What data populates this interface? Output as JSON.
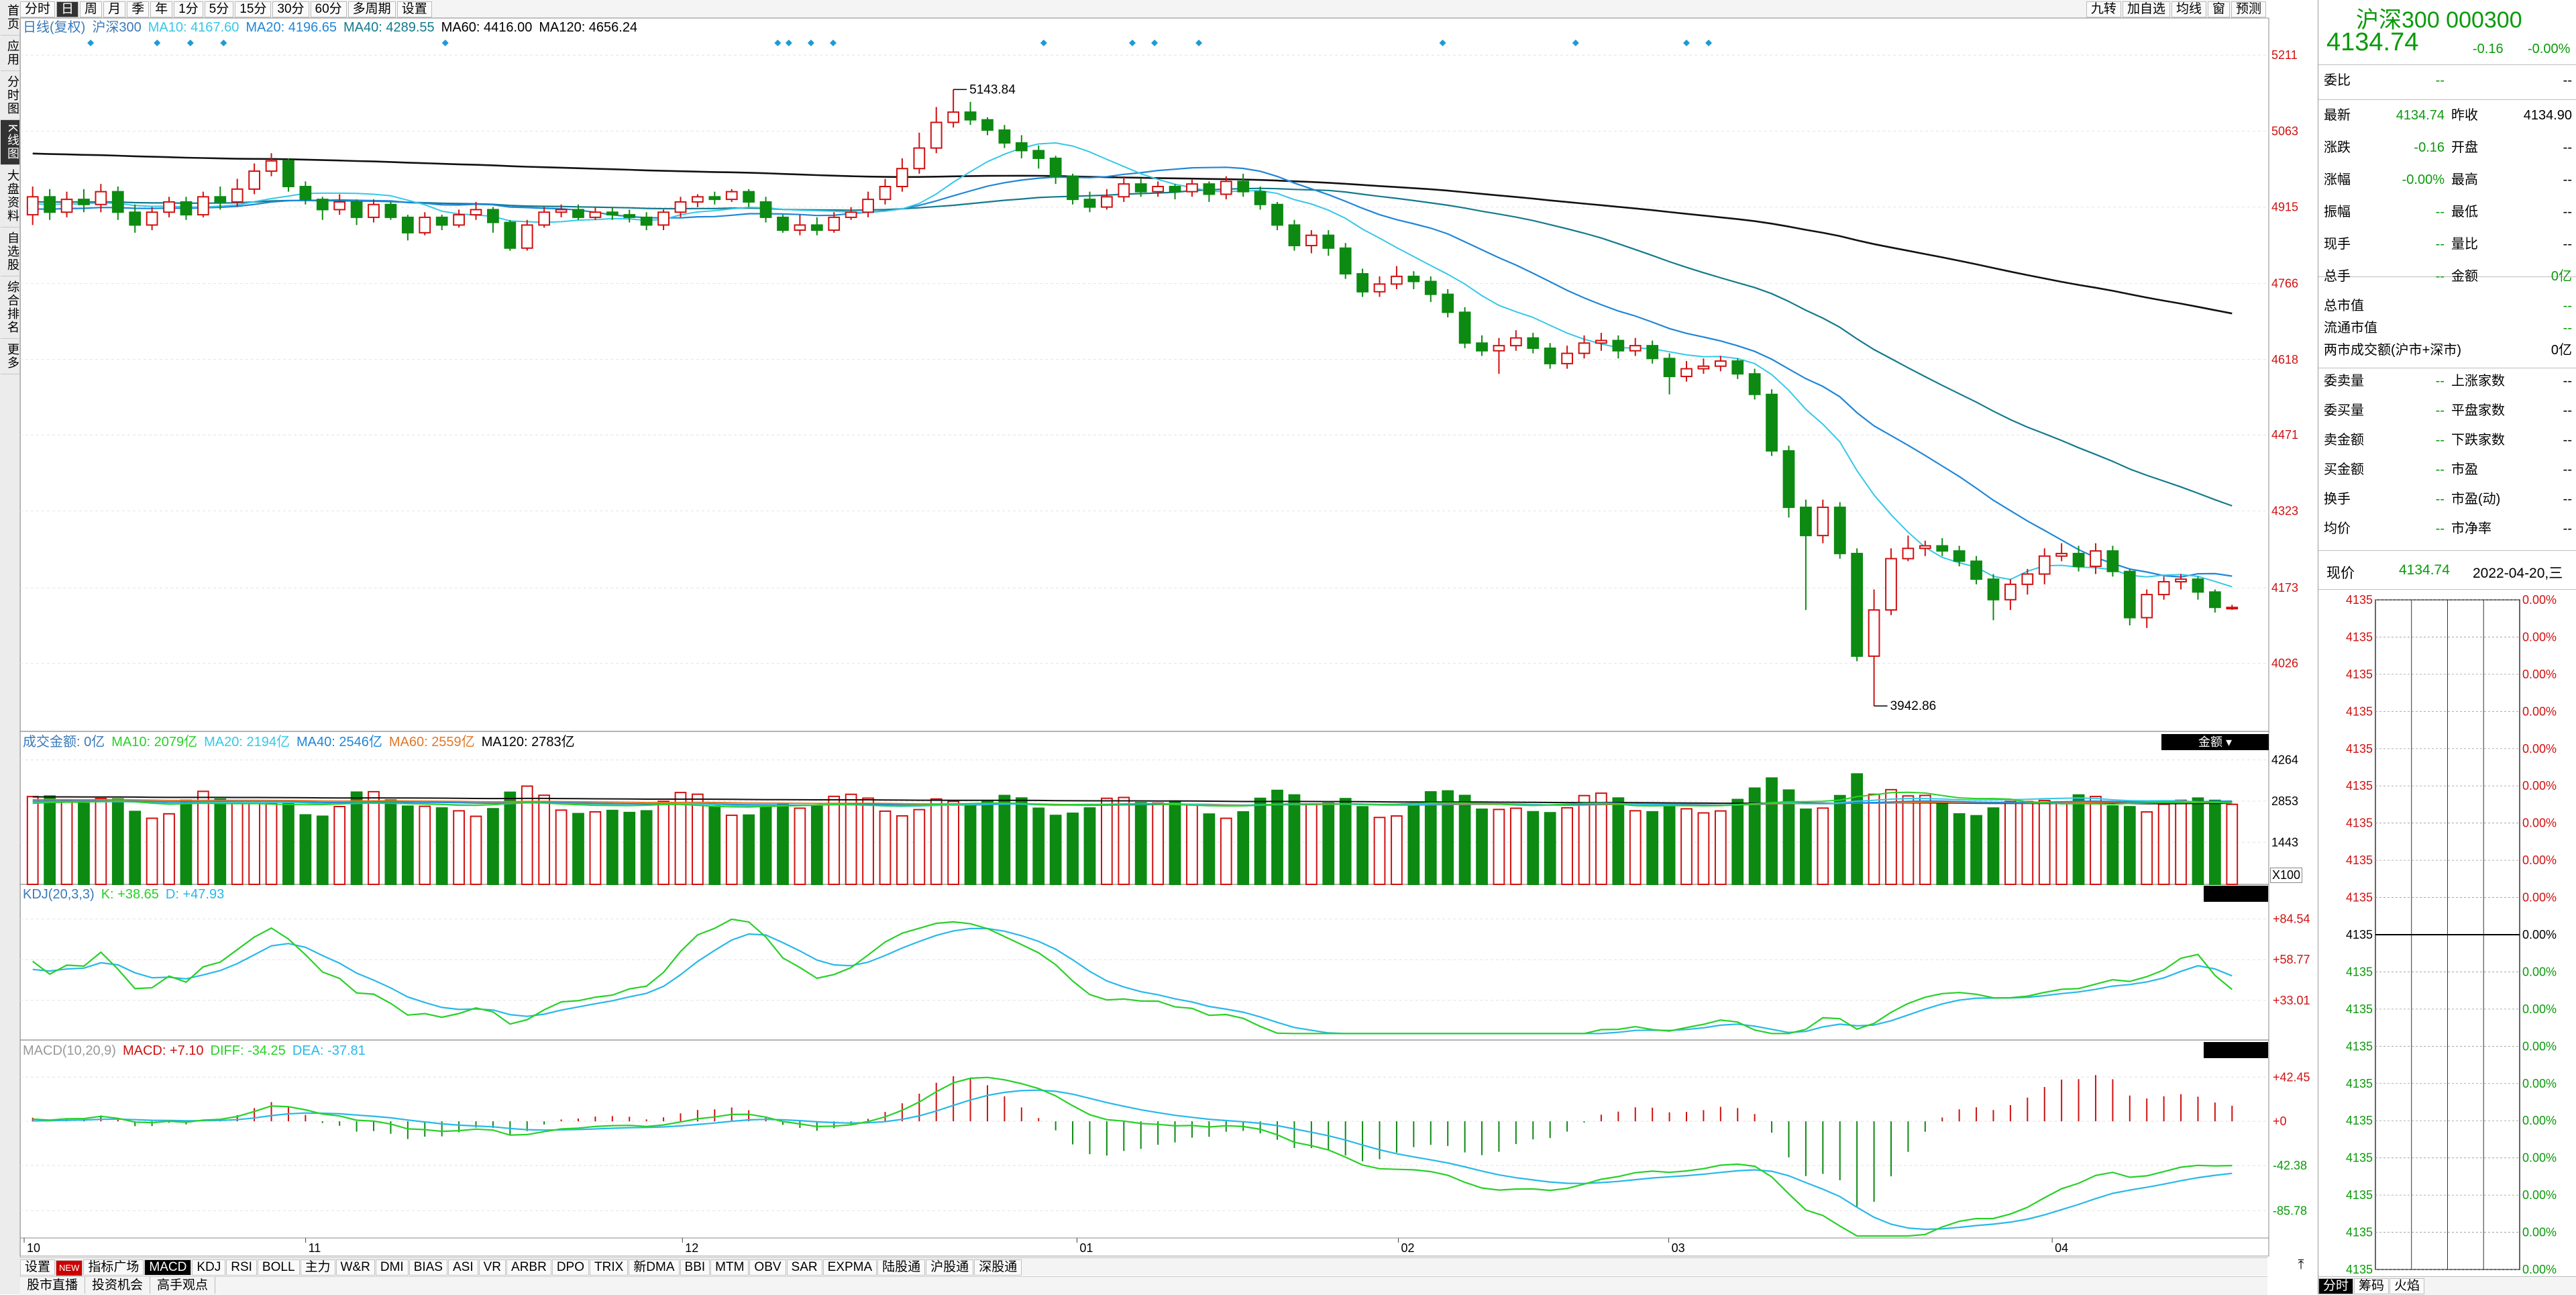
{
  "toolbar": {
    "items": [
      "分时",
      "日",
      "周",
      "月",
      "季",
      "年",
      "1分",
      "5分",
      "15分",
      "30分",
      "60分",
      "多周期",
      "设置"
    ],
    "active_index": 1,
    "right_items": [
      "九转",
      "加自选",
      "均线",
      "窗",
      "预测"
    ]
  },
  "sidebar": {
    "tabs": [
      "首页",
      "应用",
      "分时图",
      "K线图",
      "大盘资料",
      "自选股",
      "综合排名",
      "更多"
    ],
    "active_index": 3
  },
  "main_legend": {
    "period": "日线(复权)",
    "index_name": "沪深300",
    "ma10": "MA10: 4167.60",
    "ma20": "MA20: 4196.65",
    "ma40": "MA40: 4289.55",
    "ma60": "MA60: 4416.00",
    "ma120": "MA120: 4656.24"
  },
  "volume_legend": {
    "label": "成交金额: 0亿",
    "ma10": "MA10: 2079亿",
    "ma20": "MA20: 2194亿",
    "ma40": "MA40: 2546亿",
    "ma60": "MA60: 2559亿",
    "ma120": "MA120: 2783亿",
    "selector": "金额",
    "multiplier": "X100"
  },
  "kdj_legend": {
    "label": "KDJ(20,3,3)",
    "k": "K: +38.65",
    "d": "D: +47.93"
  },
  "macd_legend": {
    "label": "MACD(10,20,9)",
    "macd": "MACD: +7.10",
    "diff": "DIFF: -34.25",
    "dea": "DEA: -37.81"
  },
  "colors": {
    "up": "#d01010",
    "down": "#0c8a12",
    "ma10": "#35c8e6",
    "ma20": "#1f86d8",
    "ma40": "#127a8c",
    "ma60": "#e07828",
    "ma120": "#111111",
    "kdj_k": "#28d028",
    "kdj_d": "#28b8e8",
    "macd_diff": "#28d028",
    "macd_dea": "#28b8e8"
  },
  "bottom_tabs": {
    "items": [
      "设置",
      "NEW",
      "指标广场",
      "MACD",
      "KDJ",
      "RSI",
      "BOLL",
      "主力",
      "W&R",
      "DMI",
      "BIAS",
      "ASI",
      "VR",
      "ARBR",
      "DPO",
      "TRIX",
      "新DMA",
      "BBI",
      "MTM",
      "OBV",
      "SAR",
      "EXPMA",
      "陆股通",
      "沪股通",
      "深股通"
    ],
    "active": "MACD"
  },
  "status_bar": [
    "股市直播",
    "投资机会",
    "高手观点"
  ],
  "right_panel": {
    "title": "沪深300 000300",
    "price": "4134.74",
    "change": "-0.16",
    "change_pct": "-0.00%",
    "rows": [
      {
        "l": "委比",
        "v": "--",
        "l2": "",
        "v2": "--"
      },
      {
        "l": "最新",
        "v": "4134.74",
        "l2": "昨收",
        "v2": "4134.90"
      },
      {
        "l": "涨跌",
        "v": "-0.16",
        "l2": "开盘",
        "v2": "--"
      },
      {
        "l": "涨幅",
        "v": "-0.00%",
        "l2": "最高",
        "v2": "--"
      },
      {
        "l": "振幅",
        "v": "--",
        "l2": "最低",
        "v2": "--"
      },
      {
        "l": "现手",
        "v": "--",
        "l2": "量比",
        "v2": "--"
      },
      {
        "l": "总手",
        "v": "--",
        "l2": "金额",
        "v2": "0亿"
      }
    ],
    "rows2": [
      {
        "l": "总市值",
        "v": "--"
      },
      {
        "l": "流通市值",
        "v": "--"
      },
      {
        "l": "两市成交额(沪市+深市)",
        "v": "0亿"
      }
    ],
    "rows3": [
      {
        "l": "委卖量",
        "v": "--",
        "l2": "上涨家数",
        "v2": "--"
      },
      {
        "l": "委买量",
        "v": "--",
        "l2": "平盘家数",
        "v2": "--"
      },
      {
        "l": "卖金额",
        "v": "--",
        "l2": "下跌家数",
        "v2": "--"
      },
      {
        "l": "买金额",
        "v": "--",
        "l2": "市盈",
        "v2": "--"
      },
      {
        "l": "换手",
        "v": "--",
        "l2": "市盈(动)",
        "v2": "--"
      },
      {
        "l": "均价",
        "v": "--",
        "l2": "市净率",
        "v2": "--"
      }
    ],
    "now_label": "现价",
    "now_price": "4134.74",
    "date": "2022-04-20,三",
    "mini_price": "4135",
    "mini_pct": "0.00%",
    "mini_zero": "0",
    "bottom_tabs": [
      "分时",
      "筹码",
      "火焰"
    ]
  },
  "chart_data": {
    "type": "candlestick",
    "price_axis_ticks": [
      "5211",
      "5063",
      "4915",
      "4766",
      "4618",
      "4471",
      "4323",
      "4173",
      "4026"
    ],
    "price_range": [
      3900,
      5240
    ],
    "x_tick_labels": [
      "10",
      "11",
      "12",
      "01",
      "02",
      "03",
      "04"
    ],
    "annotations": [
      {
        "text": "5143.84",
        "type": "high"
      },
      {
        "text": "3942.86",
        "type": "low"
      }
    ],
    "candles": [
      [
        4900,
        4935,
        4955,
        4880
      ],
      [
        4935,
        4905,
        4950,
        4890
      ],
      [
        4905,
        4930,
        4945,
        4895
      ],
      [
        4930,
        4920,
        4950,
        4905
      ],
      [
        4920,
        4945,
        4960,
        4905
      ],
      [
        4945,
        4905,
        4955,
        4890
      ],
      [
        4905,
        4880,
        4920,
        4865
      ],
      [
        4880,
        4905,
        4915,
        4870
      ],
      [
        4905,
        4925,
        4935,
        4895
      ],
      [
        4925,
        4900,
        4935,
        4890
      ],
      [
        4900,
        4935,
        4945,
        4895
      ],
      [
        4935,
        4925,
        4955,
        4910
      ],
      [
        4925,
        4950,
        4970,
        4915
      ],
      [
        4950,
        4985,
        5000,
        4940
      ],
      [
        4985,
        5005,
        5020,
        4975
      ],
      [
        5005,
        4955,
        5010,
        4945
      ],
      [
        4955,
        4930,
        4965,
        4920
      ],
      [
        4930,
        4910,
        4935,
        4890
      ],
      [
        4910,
        4925,
        4940,
        4900
      ],
      [
        4925,
        4895,
        4930,
        4880
      ],
      [
        4895,
        4920,
        4930,
        4885
      ],
      [
        4920,
        4895,
        4925,
        4890
      ],
      [
        4895,
        4865,
        4900,
        4850
      ],
      [
        4865,
        4895,
        4905,
        4860
      ],
      [
        4895,
        4880,
        4900,
        4870
      ],
      [
        4880,
        4900,
        4910,
        4875
      ],
      [
        4900,
        4910,
        4925,
        4890
      ],
      [
        4910,
        4885,
        4915,
        4865
      ],
      [
        4885,
        4835,
        4890,
        4830
      ],
      [
        4835,
        4880,
        4890,
        4830
      ],
      [
        4880,
        4905,
        4915,
        4875
      ],
      [
        4905,
        4910,
        4920,
        4895
      ],
      [
        4910,
        4895,
        4920,
        4890
      ],
      [
        4895,
        4905,
        4915,
        4890
      ],
      [
        4905,
        4900,
        4915,
        4890
      ],
      [
        4900,
        4895,
        4910,
        4885
      ],
      [
        4895,
        4880,
        4905,
        4870
      ],
      [
        4880,
        4905,
        4910,
        4870
      ],
      [
        4905,
        4925,
        4935,
        4895
      ],
      [
        4925,
        4935,
        4940,
        4915
      ],
      [
        4935,
        4930,
        4945,
        4920
      ],
      [
        4930,
        4945,
        4950,
        4925
      ],
      [
        4945,
        4925,
        4950,
        4915
      ],
      [
        4925,
        4895,
        4935,
        4885
      ],
      [
        4895,
        4870,
        4900,
        4865
      ],
      [
        4870,
        4880,
        4900,
        4860
      ],
      [
        4880,
        4870,
        4895,
        4860
      ],
      [
        4870,
        4895,
        4905,
        4865
      ],
      [
        4895,
        4905,
        4915,
        4890
      ],
      [
        4905,
        4930,
        4945,
        4895
      ],
      [
        4930,
        4955,
        4970,
        4920
      ],
      [
        4955,
        4990,
        5010,
        4945
      ],
      [
        4990,
        5030,
        5060,
        4980
      ],
      [
        5030,
        5080,
        5110,
        5020
      ],
      [
        5080,
        5100,
        5144,
        5070
      ],
      [
        5100,
        5085,
        5120,
        5075
      ],
      [
        5085,
        5065,
        5090,
        5055
      ],
      [
        5065,
        5040,
        5075,
        5030
      ],
      [
        5040,
        5025,
        5055,
        5010
      ],
      [
        5025,
        5010,
        5035,
        4990
      ],
      [
        5010,
        4975,
        5015,
        4960
      ],
      [
        4975,
        4930,
        4980,
        4920
      ],
      [
        4930,
        4915,
        4945,
        4905
      ],
      [
        4915,
        4935,
        4950,
        4910
      ],
      [
        4935,
        4960,
        4975,
        4925
      ],
      [
        4960,
        4945,
        4970,
        4935
      ],
      [
        4945,
        4955,
        4965,
        4935
      ],
      [
        4955,
        4945,
        4960,
        4930
      ],
      [
        4945,
        4960,
        4970,
        4935
      ],
      [
        4960,
        4940,
        4965,
        4925
      ],
      [
        4940,
        4965,
        4975,
        4930
      ],
      [
        4965,
        4945,
        4980,
        4935
      ],
      [
        4945,
        4920,
        4955,
        4910
      ],
      [
        4920,
        4880,
        4925,
        4870
      ],
      [
        4880,
        4840,
        4890,
        4830
      ],
      [
        4840,
        4860,
        4870,
        4825
      ],
      [
        4860,
        4835,
        4870,
        4820
      ],
      [
        4835,
        4785,
        4845,
        4775
      ],
      [
        4785,
        4750,
        4795,
        4740
      ],
      [
        4750,
        4765,
        4780,
        4740
      ],
      [
        4765,
        4780,
        4800,
        4755
      ],
      [
        4780,
        4770,
        4790,
        4755
      ],
      [
        4770,
        4745,
        4780,
        4730
      ],
      [
        4745,
        4710,
        4755,
        4700
      ],
      [
        4710,
        4650,
        4720,
        4640
      ],
      [
        4650,
        4635,
        4665,
        4625
      ],
      [
        4635,
        4645,
        4660,
        4590
      ],
      [
        4645,
        4660,
        4675,
        4635
      ],
      [
        4660,
        4640,
        4670,
        4630
      ],
      [
        4640,
        4610,
        4650,
        4600
      ],
      [
        4610,
        4630,
        4645,
        4600
      ],
      [
        4630,
        4650,
        4665,
        4620
      ],
      [
        4650,
        4655,
        4670,
        4635
      ],
      [
        4655,
        4635,
        4665,
        4620
      ],
      [
        4635,
        4645,
        4660,
        4625
      ],
      [
        4645,
        4620,
        4655,
        4610
      ],
      [
        4620,
        4585,
        4630,
        4550
      ],
      [
        4585,
        4600,
        4615,
        4575
      ],
      [
        4600,
        4605,
        4620,
        4590
      ],
      [
        4605,
        4615,
        4625,
        4595
      ],
      [
        4615,
        4590,
        4620,
        4580
      ],
      [
        4590,
        4550,
        4600,
        4540
      ],
      [
        4550,
        4440,
        4560,
        4430
      ],
      [
        4440,
        4330,
        4450,
        4310
      ],
      [
        4330,
        4275,
        4345,
        4130
      ],
      [
        4275,
        4330,
        4345,
        4260
      ],
      [
        4330,
        4240,
        4340,
        4230
      ],
      [
        4240,
        4040,
        4250,
        4030
      ],
      [
        4040,
        4130,
        4170,
        3943
      ],
      [
        4130,
        4230,
        4250,
        4120
      ],
      [
        4230,
        4250,
        4275,
        4225
      ],
      [
        4250,
        4255,
        4265,
        4235
      ],
      [
        4255,
        4245,
        4270,
        4235
      ],
      [
        4245,
        4225,
        4255,
        4215
      ],
      [
        4225,
        4190,
        4235,
        4180
      ],
      [
        4190,
        4150,
        4200,
        4110
      ],
      [
        4150,
        4180,
        4190,
        4130
      ],
      [
        4180,
        4200,
        4210,
        4160
      ],
      [
        4200,
        4235,
        4250,
        4180
      ],
      [
        4235,
        4240,
        4260,
        4225
      ],
      [
        4240,
        4215,
        4255,
        4205
      ],
      [
        4215,
        4245,
        4260,
        4200
      ],
      [
        4245,
        4205,
        4255,
        4195
      ],
      [
        4205,
        4115,
        4210,
        4100
      ],
      [
        4115,
        4160,
        4170,
        4095
      ],
      [
        4160,
        4185,
        4195,
        4150
      ],
      [
        4185,
        4190,
        4200,
        4170
      ],
      [
        4190,
        4165,
        4195,
        4150
      ],
      [
        4165,
        4135,
        4170,
        4125
      ],
      [
        4135,
        4135,
        4140,
        4130
      ]
    ]
  }
}
